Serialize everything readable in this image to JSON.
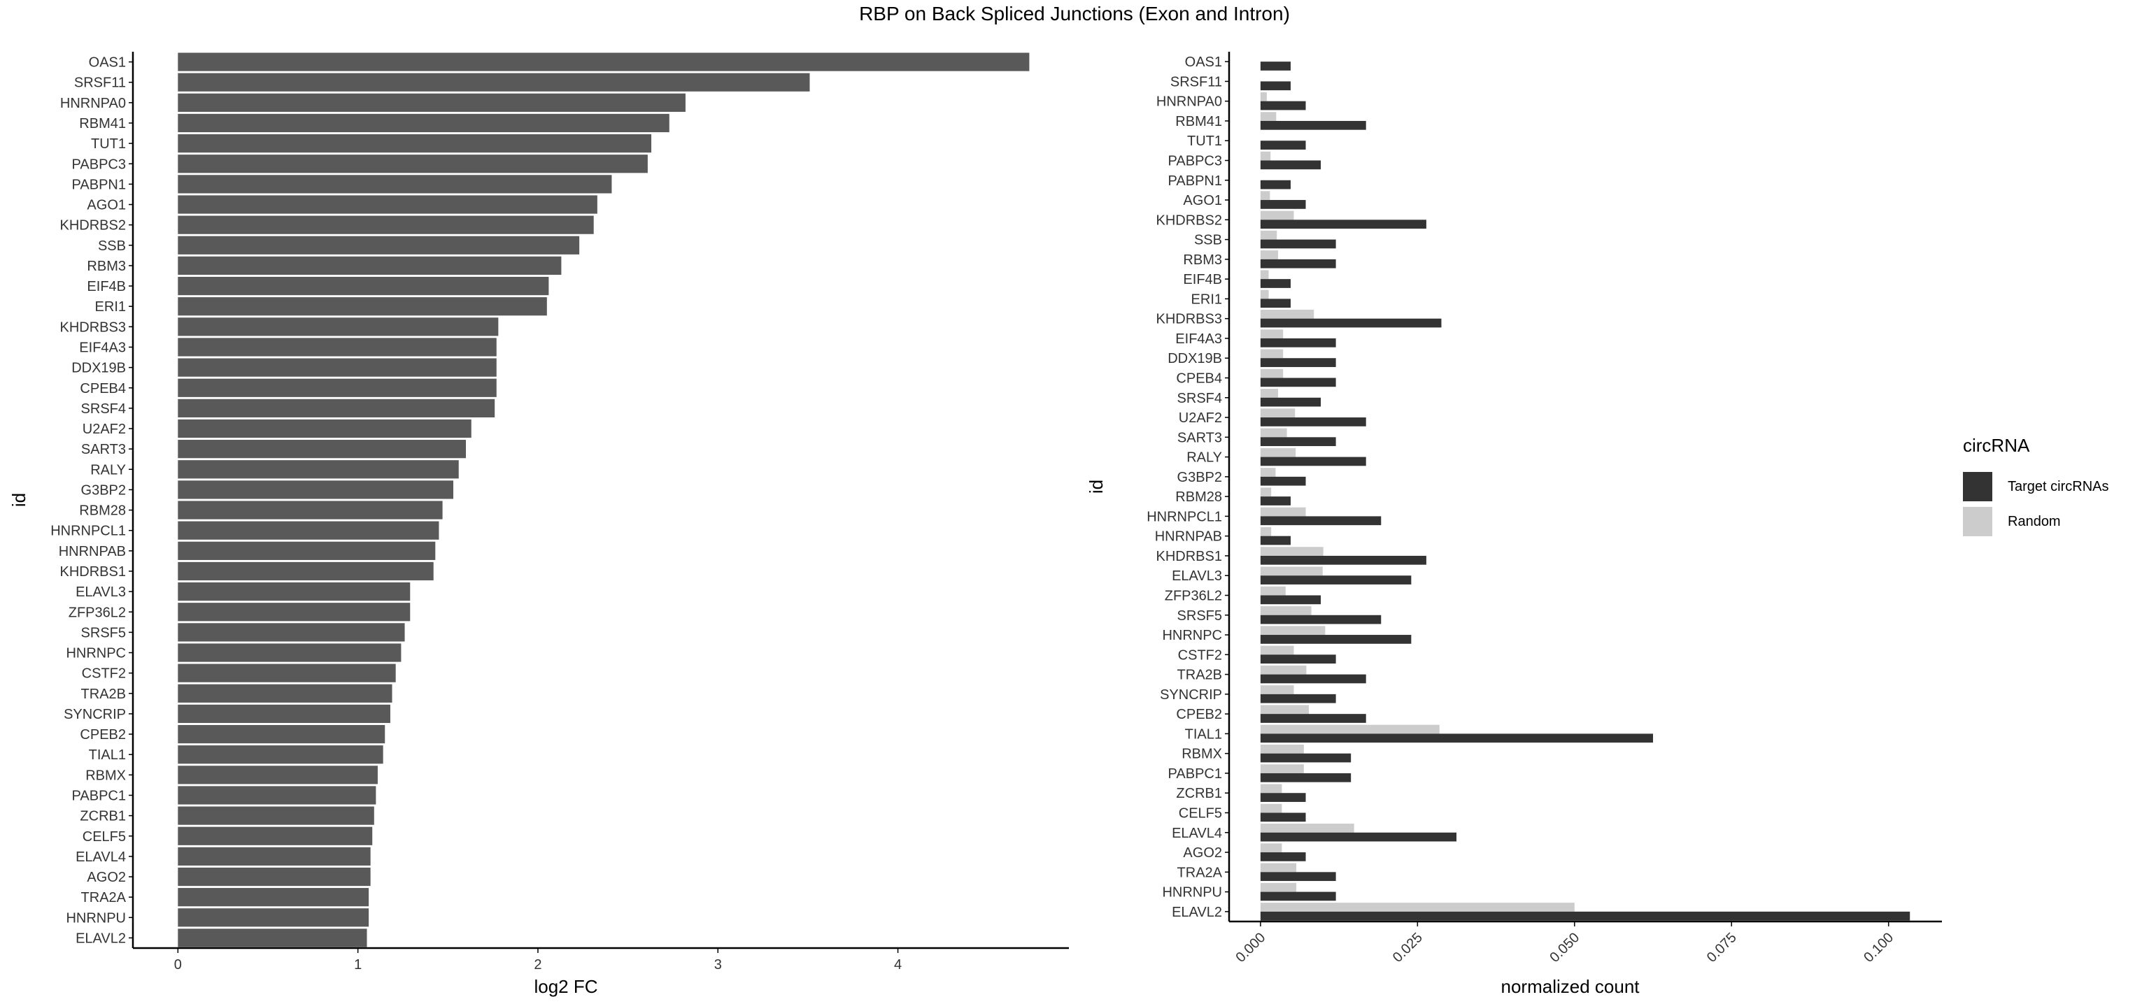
{
  "title": "RBP on Back Spliced Junctions (Exon and Intron)",
  "colors": {
    "fc_bar": "#595959",
    "target": "#333333",
    "random": "#cccccc",
    "axis": "#000000",
    "text": "#333333"
  },
  "chart_data": [
    {
      "type": "bar",
      "orientation": "horizontal",
      "xlabel": "log2 FC",
      "ylabel": "id",
      "xlim": [
        -0.25,
        4.95
      ],
      "xticks": [
        "0",
        "1",
        "2",
        "3",
        "4"
      ],
      "categories": [
        "OAS1",
        "SRSF11",
        "HNRNPA0",
        "RBM41",
        "TUT1",
        "PABPC3",
        "PABPN1",
        "AGO1",
        "KHDRBS2",
        "SSB",
        "RBM3",
        "EIF4B",
        "ERI1",
        "KHDRBS3",
        "EIF4A3",
        "DDX19B",
        "CPEB4",
        "SRSF4",
        "U2AF2",
        "SART3",
        "RALY",
        "G3BP2",
        "RBM28",
        "HNRNPCL1",
        "HNRNPAB",
        "KHDRBS1",
        "ELAVL3",
        "ZFP36L2",
        "SRSF5",
        "HNRNPC",
        "CSTF2",
        "TRA2B",
        "SYNCRIP",
        "CPEB2",
        "TIAL1",
        "RBMX",
        "PABPC1",
        "ZCRB1",
        "CELF5",
        "ELAVL4",
        "AGO2",
        "TRA2A",
        "HNRNPU",
        "ELAVL2"
      ],
      "values": [
        4.73,
        3.51,
        2.82,
        2.73,
        2.63,
        2.61,
        2.41,
        2.33,
        2.31,
        2.23,
        2.13,
        2.06,
        2.05,
        1.78,
        1.77,
        1.77,
        1.77,
        1.76,
        1.63,
        1.6,
        1.56,
        1.53,
        1.47,
        1.45,
        1.43,
        1.42,
        1.29,
        1.29,
        1.26,
        1.24,
        1.21,
        1.19,
        1.18,
        1.15,
        1.14,
        1.11,
        1.1,
        1.09,
        1.08,
        1.07,
        1.07,
        1.06,
        1.06,
        1.05
      ],
      "grid": false
    },
    {
      "type": "bar",
      "orientation": "horizontal",
      "position": "dodge",
      "xlabel": "normalized count",
      "ylabel": "id",
      "xlim": [
        -0.005,
        0.1085
      ],
      "xticks": [
        "0.000",
        "0.025",
        "0.050",
        "0.075",
        "0.100"
      ],
      "categories": [
        "OAS1",
        "SRSF11",
        "HNRNPA0",
        "RBM41",
        "TUT1",
        "PABPC3",
        "PABPN1",
        "AGO1",
        "KHDRBS2",
        "SSB",
        "RBM3",
        "EIF4B",
        "ERI1",
        "KHDRBS3",
        "EIF4A3",
        "DDX19B",
        "CPEB4",
        "SRSF4",
        "U2AF2",
        "SART3",
        "RALY",
        "G3BP2",
        "RBM28",
        "HNRNPCL1",
        "HNRNPAB",
        "KHDRBS1",
        "ELAVL3",
        "ZFP36L2",
        "SRSF5",
        "HNRNPC",
        "CSTF2",
        "TRA2B",
        "SYNCRIP",
        "CPEB2",
        "TIAL1",
        "RBMX",
        "PABPC1",
        "ZCRB1",
        "CELF5",
        "ELAVL4",
        "AGO2",
        "TRA2A",
        "HNRNPU",
        "ELAVL2"
      ],
      "legend_title": "circRNA",
      "legend_position": "right",
      "series": [
        {
          "name": "Target circRNAs",
          "color": "#333333",
          "values": [
            0.0048,
            0.0048,
            0.0072,
            0.0168,
            0.0072,
            0.0096,
            0.0048,
            0.0072,
            0.0264,
            0.012,
            0.012,
            0.0048,
            0.0048,
            0.0288,
            0.012,
            0.012,
            0.012,
            0.0096,
            0.0168,
            0.012,
            0.0168,
            0.0072,
            0.0048,
            0.0192,
            0.0048,
            0.0264,
            0.024,
            0.0096,
            0.0192,
            0.024,
            0.012,
            0.0168,
            0.012,
            0.0168,
            0.0625,
            0.0144,
            0.0144,
            0.0072,
            0.0072,
            0.0312,
            0.0072,
            0.012,
            0.012,
            0.1034
          ]
        },
        {
          "name": "Random",
          "color": "#cccccc",
          "values": [
            0,
            0,
            0.001,
            0.0025,
            0,
            0.0016,
            0,
            0.0015,
            0.0053,
            0.0026,
            0.0028,
            0.0013,
            0.0013,
            0.0085,
            0.0036,
            0.0036,
            0.0036,
            0.0028,
            0.0055,
            0.0042,
            0.0056,
            0.0024,
            0.0017,
            0.0072,
            0.0017,
            0.01,
            0.0099,
            0.004,
            0.0081,
            0.0103,
            0.0053,
            0.0073,
            0.0053,
            0.0077,
            0.0285,
            0.0069,
            0.0069,
            0.0034,
            0.0034,
            0.0149,
            0.0034,
            0.0057,
            0.0057,
            0.05
          ]
        }
      ],
      "grid": false
    }
  ]
}
